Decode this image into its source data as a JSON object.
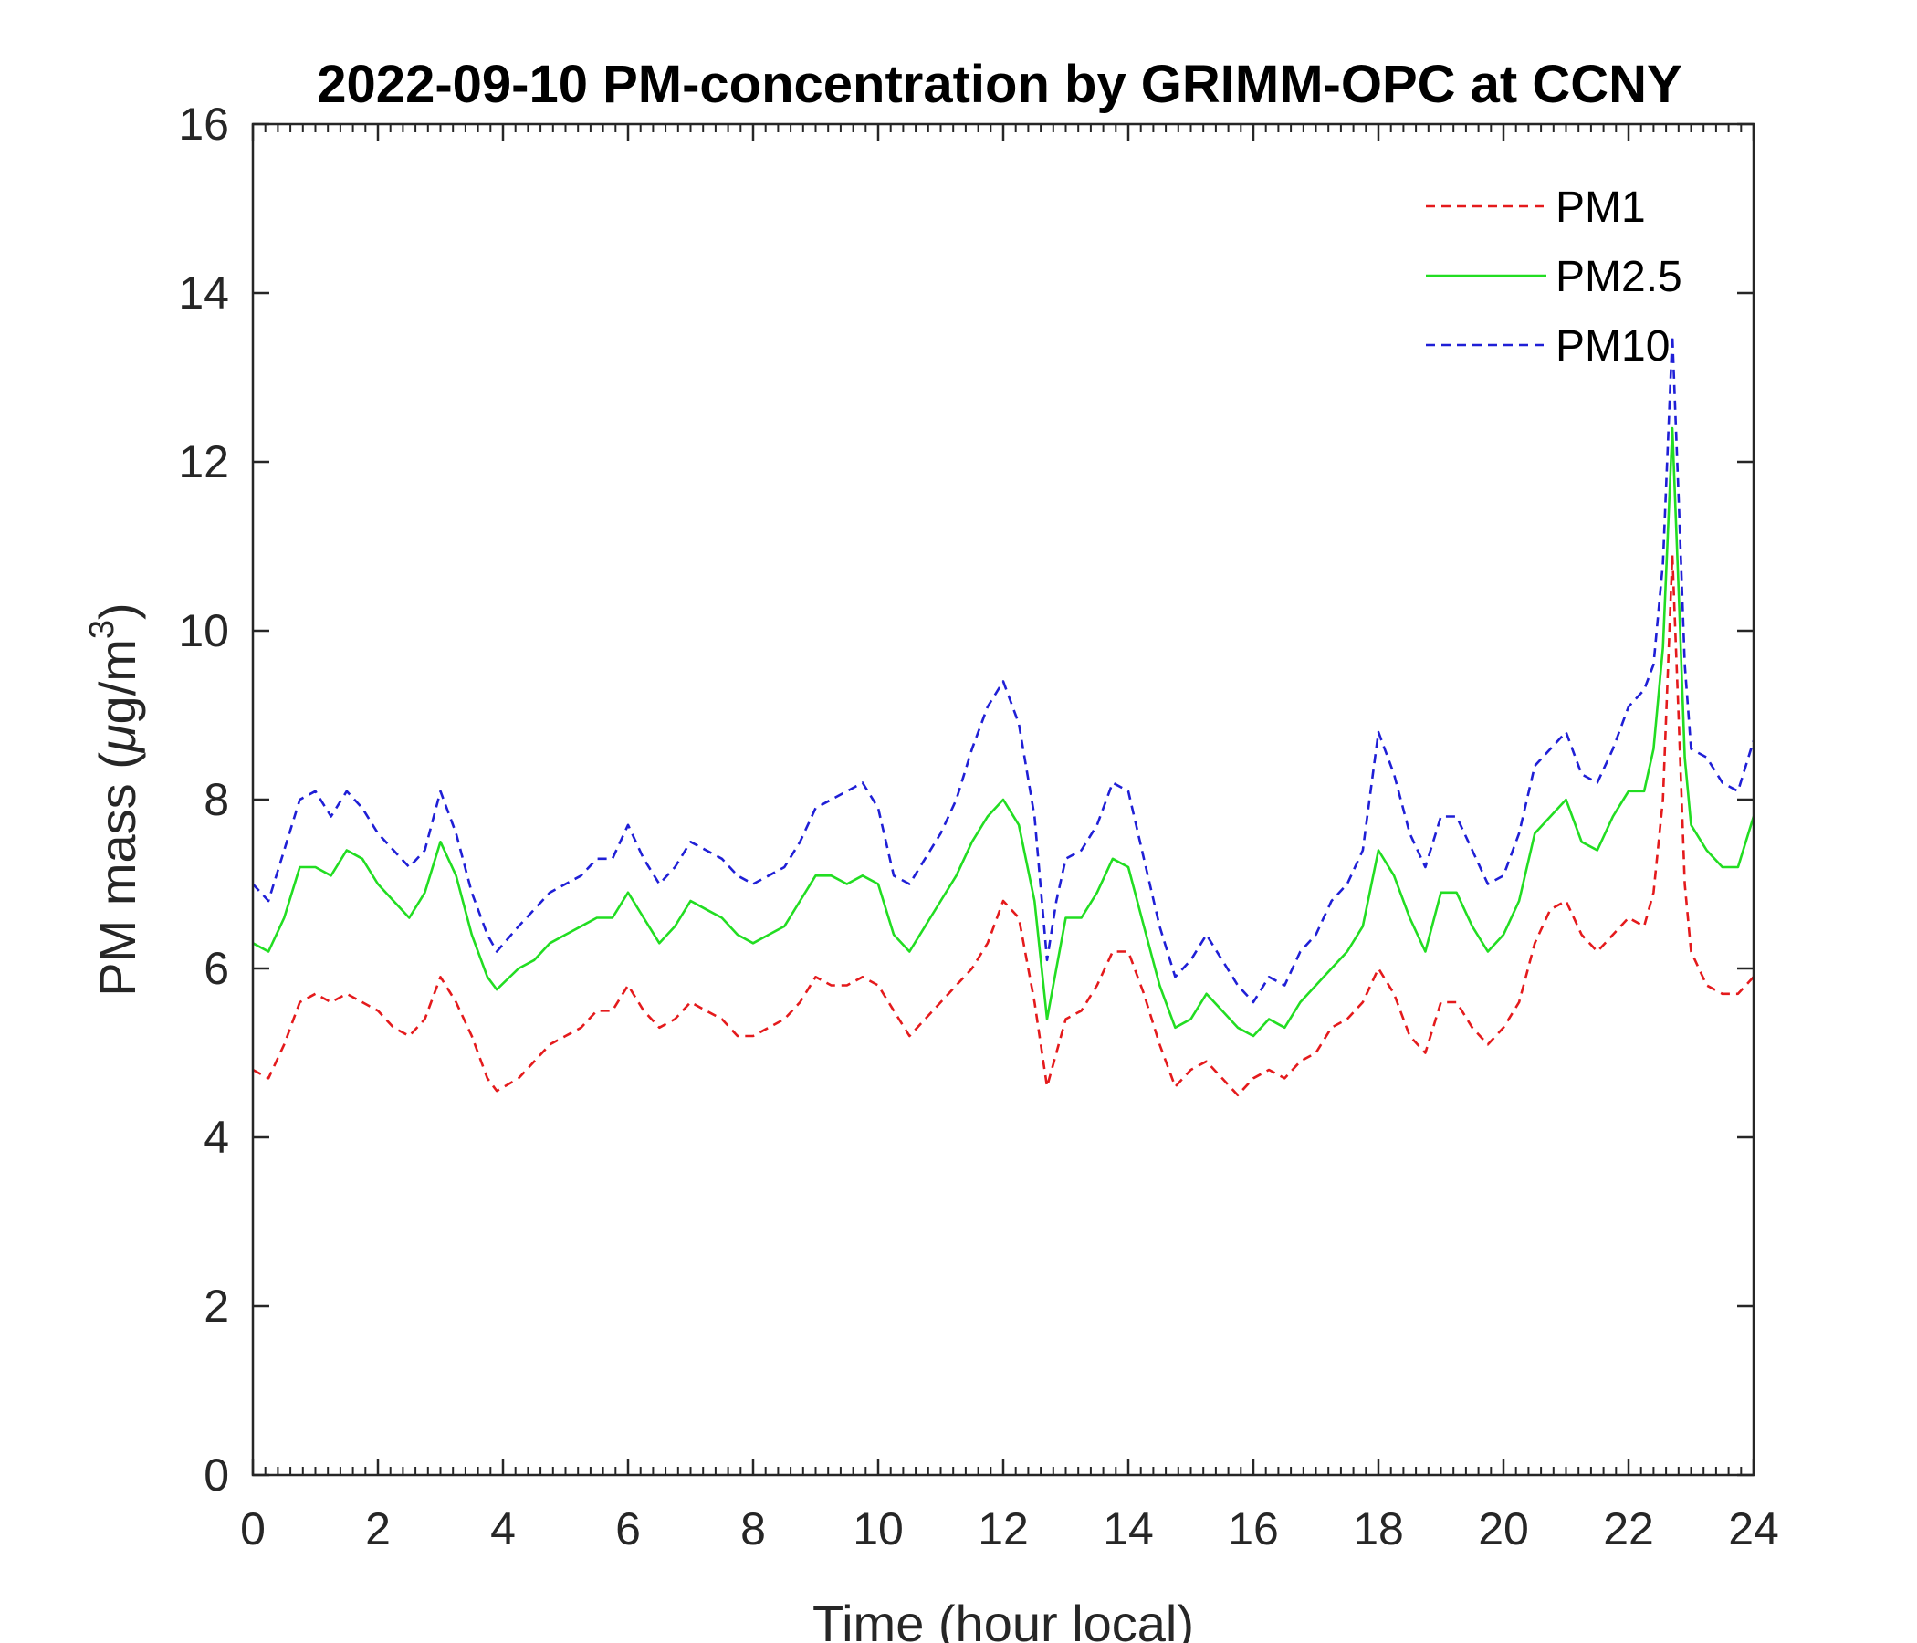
{
  "chart_data": {
    "type": "line",
    "title": "2022-09-10 PM-concentration by GRIMM-OPC at CCNY",
    "xlabel": "Time (hour local)",
    "ylabel_main": "PM mass (",
    "ylabel_mu": "μ",
    "ylabel_unit": "g/m",
    "ylabel_sup": "3",
    "ylabel_close": ")",
    "xlim": [
      0,
      24
    ],
    "ylim": [
      0,
      16
    ],
    "xticks": [
      0,
      2,
      4,
      6,
      8,
      10,
      12,
      14,
      16,
      18,
      20,
      22,
      24
    ],
    "yticks": [
      0,
      2,
      4,
      6,
      8,
      10,
      12,
      14,
      16
    ],
    "x_minor_step": 0.2,
    "legend_position": "top-right",
    "x": [
      0.0,
      0.25,
      0.5,
      0.75,
      1.0,
      1.25,
      1.5,
      1.75,
      2.0,
      2.25,
      2.5,
      2.75,
      3.0,
      3.25,
      3.5,
      3.75,
      3.9,
      4.25,
      4.5,
      4.75,
      5.0,
      5.25,
      5.5,
      5.75,
      6.0,
      6.25,
      6.5,
      6.75,
      7.0,
      7.25,
      7.5,
      7.75,
      8.0,
      8.25,
      8.5,
      8.75,
      9.0,
      9.25,
      9.5,
      9.75,
      10.0,
      10.25,
      10.5,
      10.75,
      11.0,
      11.25,
      11.5,
      11.75,
      12.0,
      12.25,
      12.5,
      12.7,
      12.85,
      13.0,
      13.25,
      13.5,
      13.75,
      14.0,
      14.25,
      14.5,
      14.75,
      15.0,
      15.25,
      15.5,
      15.75,
      16.0,
      16.25,
      16.5,
      16.75,
      17.0,
      17.25,
      17.5,
      17.75,
      18.0,
      18.25,
      18.5,
      18.75,
      19.0,
      19.25,
      19.5,
      19.75,
      20.0,
      20.25,
      20.5,
      20.75,
      21.0,
      21.25,
      21.5,
      21.75,
      22.0,
      22.25,
      22.4,
      22.55,
      22.7,
      22.8,
      22.9,
      23.0,
      23.25,
      23.5,
      23.75,
      24.0
    ],
    "series": [
      {
        "name": "PM1",
        "color": "#e41a1c",
        "style": "dashed",
        "values": [
          4.8,
          4.7,
          5.1,
          5.6,
          5.7,
          5.6,
          5.7,
          5.6,
          5.5,
          5.3,
          5.2,
          5.4,
          5.9,
          5.6,
          5.2,
          4.7,
          4.55,
          4.7,
          4.9,
          5.1,
          5.2,
          5.3,
          5.5,
          5.5,
          5.8,
          5.5,
          5.3,
          5.4,
          5.6,
          5.5,
          5.4,
          5.2,
          5.2,
          5.3,
          5.4,
          5.6,
          5.9,
          5.8,
          5.8,
          5.9,
          5.8,
          5.5,
          5.2,
          5.4,
          5.6,
          5.8,
          6.0,
          6.3,
          6.8,
          6.6,
          5.6,
          4.6,
          5.0,
          5.4,
          5.5,
          5.8,
          6.2,
          6.2,
          5.7,
          5.1,
          4.6,
          4.8,
          4.9,
          4.7,
          4.5,
          4.7,
          4.8,
          4.7,
          4.9,
          5.0,
          5.3,
          5.4,
          5.6,
          6.0,
          5.7,
          5.2,
          5.0,
          5.6,
          5.6,
          5.3,
          5.1,
          5.3,
          5.6,
          6.3,
          6.7,
          6.8,
          6.4,
          6.2,
          6.4,
          6.6,
          6.5,
          6.9,
          8.0,
          10.9,
          9.0,
          7.0,
          6.2,
          5.8,
          5.7,
          5.7,
          5.9
        ]
      },
      {
        "name": "PM2.5",
        "color": "#22dd22",
        "style": "solid",
        "values": [
          6.3,
          6.2,
          6.6,
          7.2,
          7.2,
          7.1,
          7.4,
          7.3,
          7.0,
          6.8,
          6.6,
          6.9,
          7.5,
          7.1,
          6.4,
          5.9,
          5.75,
          6.0,
          6.1,
          6.3,
          6.4,
          6.5,
          6.6,
          6.6,
          6.9,
          6.6,
          6.3,
          6.5,
          6.8,
          6.7,
          6.6,
          6.4,
          6.3,
          6.4,
          6.5,
          6.8,
          7.1,
          7.1,
          7.0,
          7.1,
          7.0,
          6.4,
          6.2,
          6.5,
          6.8,
          7.1,
          7.5,
          7.8,
          8.0,
          7.7,
          6.8,
          5.4,
          6.0,
          6.6,
          6.6,
          6.9,
          7.3,
          7.2,
          6.5,
          5.8,
          5.3,
          5.4,
          5.7,
          5.5,
          5.3,
          5.2,
          5.4,
          5.3,
          5.6,
          5.8,
          6.0,
          6.2,
          6.5,
          7.4,
          7.1,
          6.6,
          6.2,
          6.9,
          6.9,
          6.5,
          6.2,
          6.4,
          6.8,
          7.6,
          7.8,
          8.0,
          7.5,
          7.4,
          7.8,
          8.1,
          8.1,
          8.6,
          9.8,
          12.4,
          10.5,
          8.5,
          7.7,
          7.4,
          7.2,
          7.2,
          7.8
        ]
      },
      {
        "name": "PM10",
        "color": "#1f1fd6",
        "style": "dashed",
        "values": [
          7.0,
          6.8,
          7.4,
          8.0,
          8.1,
          7.8,
          8.1,
          7.9,
          7.6,
          7.4,
          7.2,
          7.4,
          8.1,
          7.6,
          6.9,
          6.4,
          6.2,
          6.5,
          6.7,
          6.9,
          7.0,
          7.1,
          7.3,
          7.3,
          7.7,
          7.3,
          7.0,
          7.2,
          7.5,
          7.4,
          7.3,
          7.1,
          7.0,
          7.1,
          7.2,
          7.5,
          7.9,
          8.0,
          8.1,
          8.2,
          7.9,
          7.1,
          7.0,
          7.3,
          7.6,
          8.0,
          8.6,
          9.1,
          9.4,
          8.9,
          7.8,
          6.1,
          6.8,
          7.3,
          7.4,
          7.7,
          8.2,
          8.1,
          7.3,
          6.5,
          5.9,
          6.1,
          6.4,
          6.1,
          5.8,
          5.6,
          5.9,
          5.8,
          6.2,
          6.4,
          6.8,
          7.0,
          7.4,
          8.8,
          8.3,
          7.6,
          7.2,
          7.8,
          7.8,
          7.4,
          7.0,
          7.1,
          7.6,
          8.4,
          8.6,
          8.8,
          8.3,
          8.2,
          8.6,
          9.1,
          9.3,
          9.6,
          10.8,
          13.5,
          11.6,
          9.6,
          8.6,
          8.5,
          8.2,
          8.1,
          8.7
        ]
      }
    ]
  }
}
